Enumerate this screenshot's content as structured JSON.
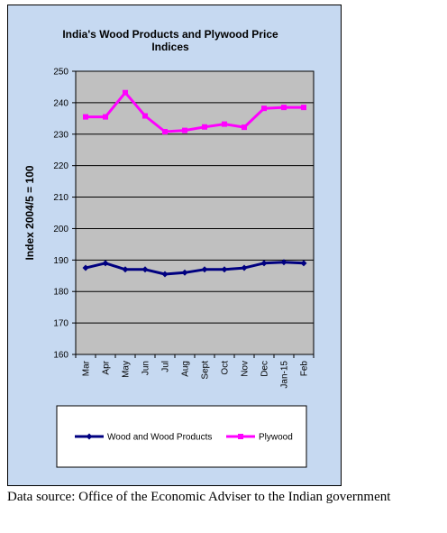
{
  "chart_data": {
    "type": "line",
    "title": "India's Wood Products and Plywood Price Indices",
    "title_lines": [
      "India's Wood Products and Plywood Price",
      "Indices"
    ],
    "xlabel": "",
    "ylabel": "Index 2004/5 = 100",
    "categories": [
      "Mar",
      "Apr",
      "May",
      "Jun",
      "Jul",
      "Aug",
      "Sept",
      "Oct",
      "Nov",
      "Dec",
      "Jan-15",
      "Feb"
    ],
    "ylim": [
      160,
      250
    ],
    "yticks": [
      160,
      170,
      180,
      190,
      200,
      210,
      220,
      230,
      240,
      250
    ],
    "grid": true,
    "legend_position": "bottom",
    "series": [
      {
        "name": "Wood and Wood Products",
        "color": "#000080",
        "values": [
          187.5,
          189,
          187,
          187,
          185.5,
          186,
          187,
          187,
          187.5,
          189,
          189.3,
          189
        ]
      },
      {
        "name": "Plywood",
        "color": "#ff00ff",
        "values": [
          235.5,
          235.5,
          243.2,
          235.8,
          230.8,
          231.2,
          232.3,
          233.2,
          232.2,
          238.2,
          238.5,
          238.5
        ]
      }
    ],
    "colors": {
      "frame_background": "#c6d9f1",
      "plot_background": "#c0c0c0"
    }
  },
  "caption": "Data source: Office of the Economic Adviser to the Indian government"
}
